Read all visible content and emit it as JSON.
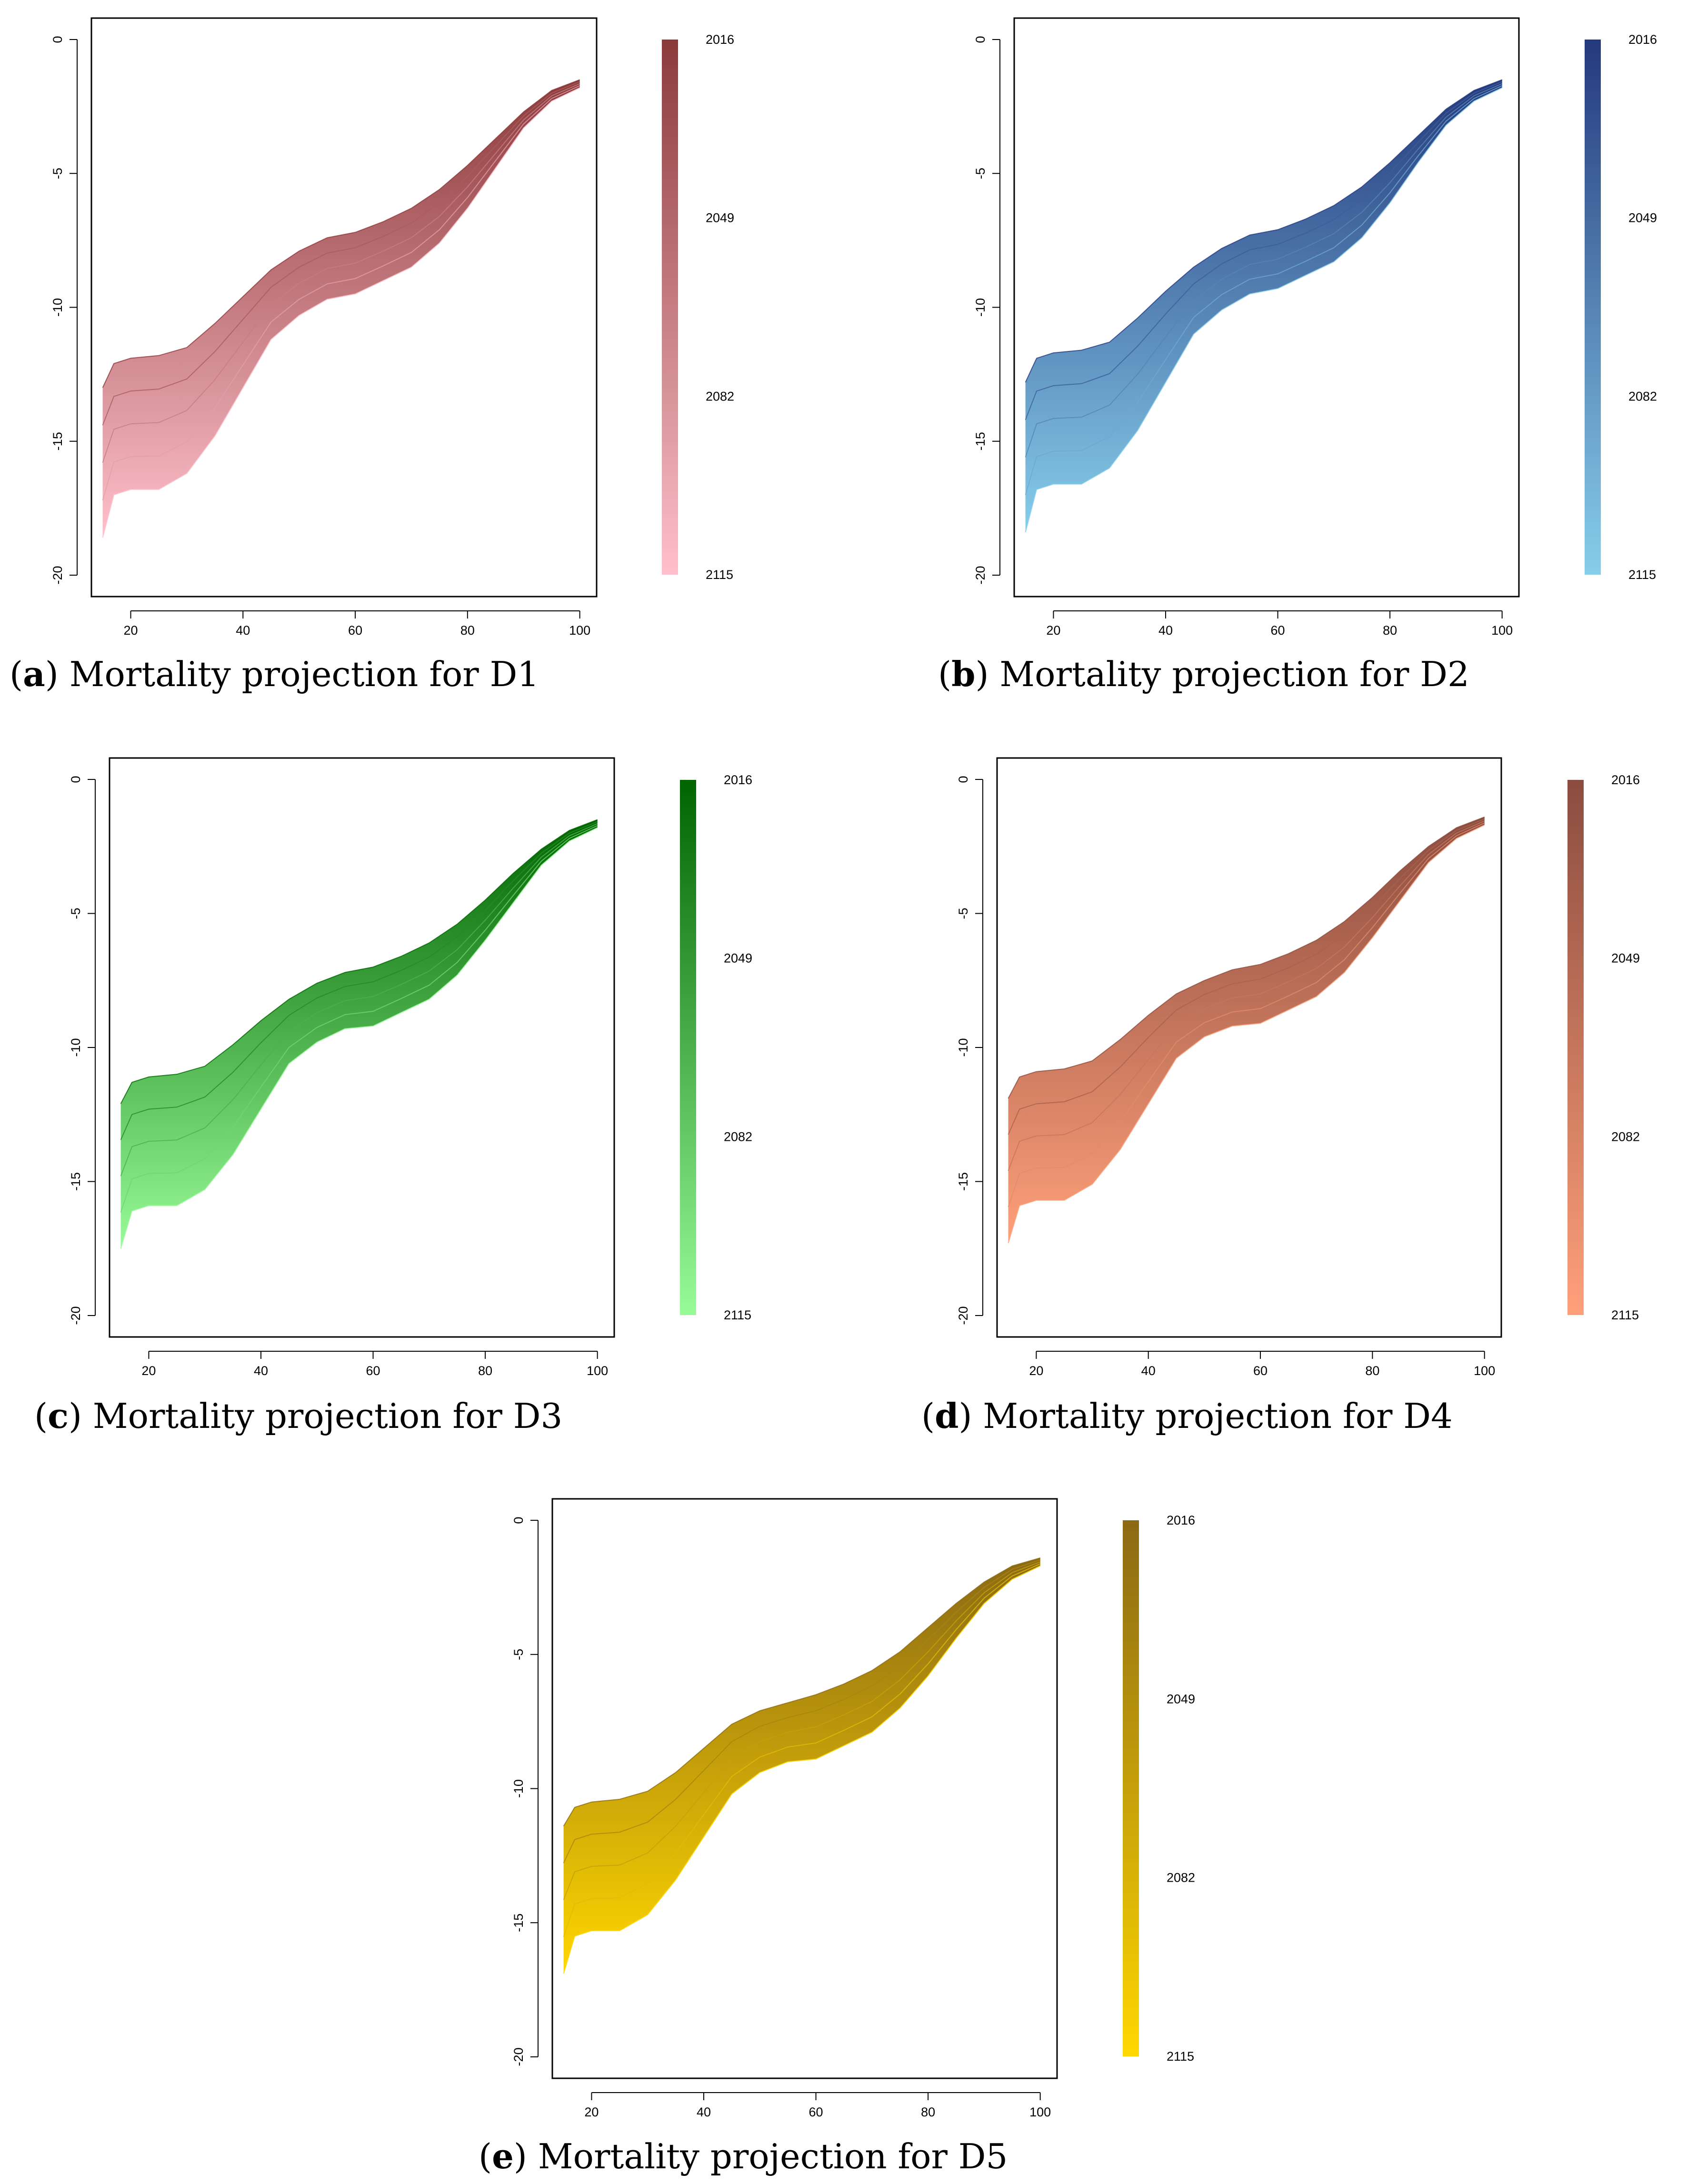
{
  "chart_data": [
    {
      "type": "area",
      "panel": "a",
      "panel_label": "a",
      "caption": "Mortality projection for D1",
      "color_start": "#8B3A3A",
      "color_end": "#FFC0CB",
      "x_ticks": [
        "20",
        "40",
        "60",
        "80",
        "100"
      ],
      "y_ticks": [
        "0",
        "-5",
        "-10",
        "-15",
        "-20"
      ],
      "xlim": [
        13,
        103
      ],
      "ylim": [
        -20.8,
        0.8
      ],
      "colorbar_ticks": [
        "2016",
        "2049",
        "2082",
        "2115"
      ],
      "ages": [
        15,
        17,
        20,
        25,
        30,
        35,
        40,
        45,
        50,
        55,
        60,
        65,
        70,
        75,
        80,
        85,
        90,
        95,
        100
      ],
      "upper": [
        -13.0,
        -12.1,
        -11.9,
        -11.8,
        -11.5,
        -10.6,
        -9.6,
        -8.6,
        -7.9,
        -7.4,
        -7.2,
        -6.8,
        -6.3,
        -5.6,
        -4.7,
        -3.7,
        -2.7,
        -1.9,
        -1.5
      ],
      "lower": [
        -18.6,
        -17.0,
        -16.8,
        -16.8,
        -16.2,
        -14.8,
        -13.0,
        -11.2,
        -10.3,
        -9.7,
        -9.5,
        -9.0,
        -8.5,
        -7.6,
        -6.3,
        -4.8,
        -3.3,
        -2.3,
        -1.8
      ]
    },
    {
      "type": "area",
      "panel": "b",
      "panel_label": "b",
      "caption": "Mortality projection for D2",
      "color_start": "#24397D",
      "color_end": "#87CEEB",
      "x_ticks": [
        "20",
        "40",
        "60",
        "80",
        "100"
      ],
      "y_ticks": [
        "0",
        "-5",
        "-10",
        "-15",
        "-20"
      ],
      "xlim": [
        13,
        103
      ],
      "ylim": [
        -20.8,
        0.8
      ],
      "colorbar_ticks": [
        "2016",
        "2049",
        "2082",
        "2115"
      ],
      "ages": [
        15,
        17,
        20,
        25,
        30,
        35,
        40,
        45,
        50,
        55,
        60,
        65,
        70,
        75,
        80,
        85,
        90,
        95,
        100
      ],
      "upper": [
        -12.8,
        -11.9,
        -11.7,
        -11.6,
        -11.3,
        -10.4,
        -9.4,
        -8.5,
        -7.8,
        -7.3,
        -7.1,
        -6.7,
        -6.2,
        -5.5,
        -4.6,
        -3.6,
        -2.6,
        -1.9,
        -1.5
      ],
      "lower": [
        -18.4,
        -16.8,
        -16.6,
        -16.6,
        -16.0,
        -14.6,
        -12.8,
        -11.0,
        -10.1,
        -9.5,
        -9.3,
        -8.8,
        -8.3,
        -7.4,
        -6.1,
        -4.6,
        -3.2,
        -2.3,
        -1.8
      ]
    },
    {
      "type": "area",
      "panel": "c",
      "panel_label": "c",
      "caption": "Mortality projection for D3",
      "color_start": "#006400",
      "color_end": "#98FB98",
      "x_ticks": [
        "20",
        "40",
        "60",
        "80",
        "100"
      ],
      "y_ticks": [
        "0",
        "-5",
        "-10",
        "-15",
        "-20"
      ],
      "xlim": [
        13,
        103
      ],
      "ylim": [
        -20.8,
        0.8
      ],
      "colorbar_ticks": [
        "2016",
        "2049",
        "2082",
        "2115"
      ],
      "ages": [
        15,
        17,
        20,
        25,
        30,
        35,
        40,
        45,
        50,
        55,
        60,
        65,
        70,
        75,
        80,
        85,
        90,
        95,
        100
      ],
      "upper": [
        -12.1,
        -11.3,
        -11.1,
        -11.0,
        -10.7,
        -9.9,
        -9.0,
        -8.2,
        -7.6,
        -7.2,
        -7.0,
        -6.6,
        -6.1,
        -5.4,
        -4.5,
        -3.5,
        -2.6,
        -1.9,
        -1.5
      ],
      "lower": [
        -17.5,
        -16.1,
        -15.9,
        -15.9,
        -15.3,
        -14.0,
        -12.3,
        -10.6,
        -9.8,
        -9.3,
        -9.2,
        -8.7,
        -8.2,
        -7.3,
        -6.0,
        -4.6,
        -3.2,
        -2.3,
        -1.8
      ]
    },
    {
      "type": "area",
      "panel": "d",
      "panel_label": "d",
      "caption": "Mortality projection for D4",
      "color_start": "#8B4C3F",
      "color_end": "#FFA07A",
      "x_ticks": [
        "20",
        "40",
        "60",
        "80",
        "100"
      ],
      "y_ticks": [
        "0",
        "-5",
        "-10",
        "-15",
        "-20"
      ],
      "xlim": [
        13,
        103
      ],
      "ylim": [
        -20.8,
        0.8
      ],
      "colorbar_ticks": [
        "2016",
        "2049",
        "2082",
        "2115"
      ],
      "ages": [
        15,
        17,
        20,
        25,
        30,
        35,
        40,
        45,
        50,
        55,
        60,
        65,
        70,
        75,
        80,
        85,
        90,
        95,
        100
      ],
      "upper": [
        -11.9,
        -11.1,
        -10.9,
        -10.8,
        -10.5,
        -9.7,
        -8.8,
        -8.0,
        -7.5,
        -7.1,
        -6.9,
        -6.5,
        -6.0,
        -5.3,
        -4.4,
        -3.4,
        -2.5,
        -1.8,
        -1.4
      ],
      "lower": [
        -17.3,
        -15.9,
        -15.7,
        -15.7,
        -15.1,
        -13.8,
        -12.1,
        -10.4,
        -9.6,
        -9.2,
        -9.1,
        -8.6,
        -8.1,
        -7.2,
        -5.9,
        -4.5,
        -3.1,
        -2.2,
        -1.7
      ]
    },
    {
      "type": "area",
      "panel": "e",
      "panel_label": "e",
      "caption": "Mortality projection for D5",
      "color_start": "#8B6914",
      "color_end": "#FFD700",
      "x_ticks": [
        "20",
        "40",
        "60",
        "80",
        "100"
      ],
      "y_ticks": [
        "0",
        "-5",
        "-10",
        "-15",
        "-20"
      ],
      "xlim": [
        13,
        103
      ],
      "ylim": [
        -20.8,
        0.8
      ],
      "colorbar_ticks": [
        "2016",
        "2049",
        "2082",
        "2115"
      ],
      "ages": [
        15,
        17,
        20,
        25,
        30,
        35,
        40,
        45,
        50,
        55,
        60,
        65,
        70,
        75,
        80,
        85,
        90,
        95,
        100
      ],
      "upper": [
        -11.4,
        -10.7,
        -10.5,
        -10.4,
        -10.1,
        -9.4,
        -8.5,
        -7.6,
        -7.1,
        -6.8,
        -6.5,
        -6.1,
        -5.6,
        -4.9,
        -4.0,
        -3.1,
        -2.3,
        -1.7,
        -1.4
      ],
      "lower": [
        -16.9,
        -15.5,
        -15.3,
        -15.3,
        -14.7,
        -13.4,
        -11.8,
        -10.2,
        -9.4,
        -9.0,
        -8.9,
        -8.4,
        -7.9,
        -7.0,
        -5.8,
        -4.4,
        -3.1,
        -2.2,
        -1.7
      ]
    }
  ]
}
